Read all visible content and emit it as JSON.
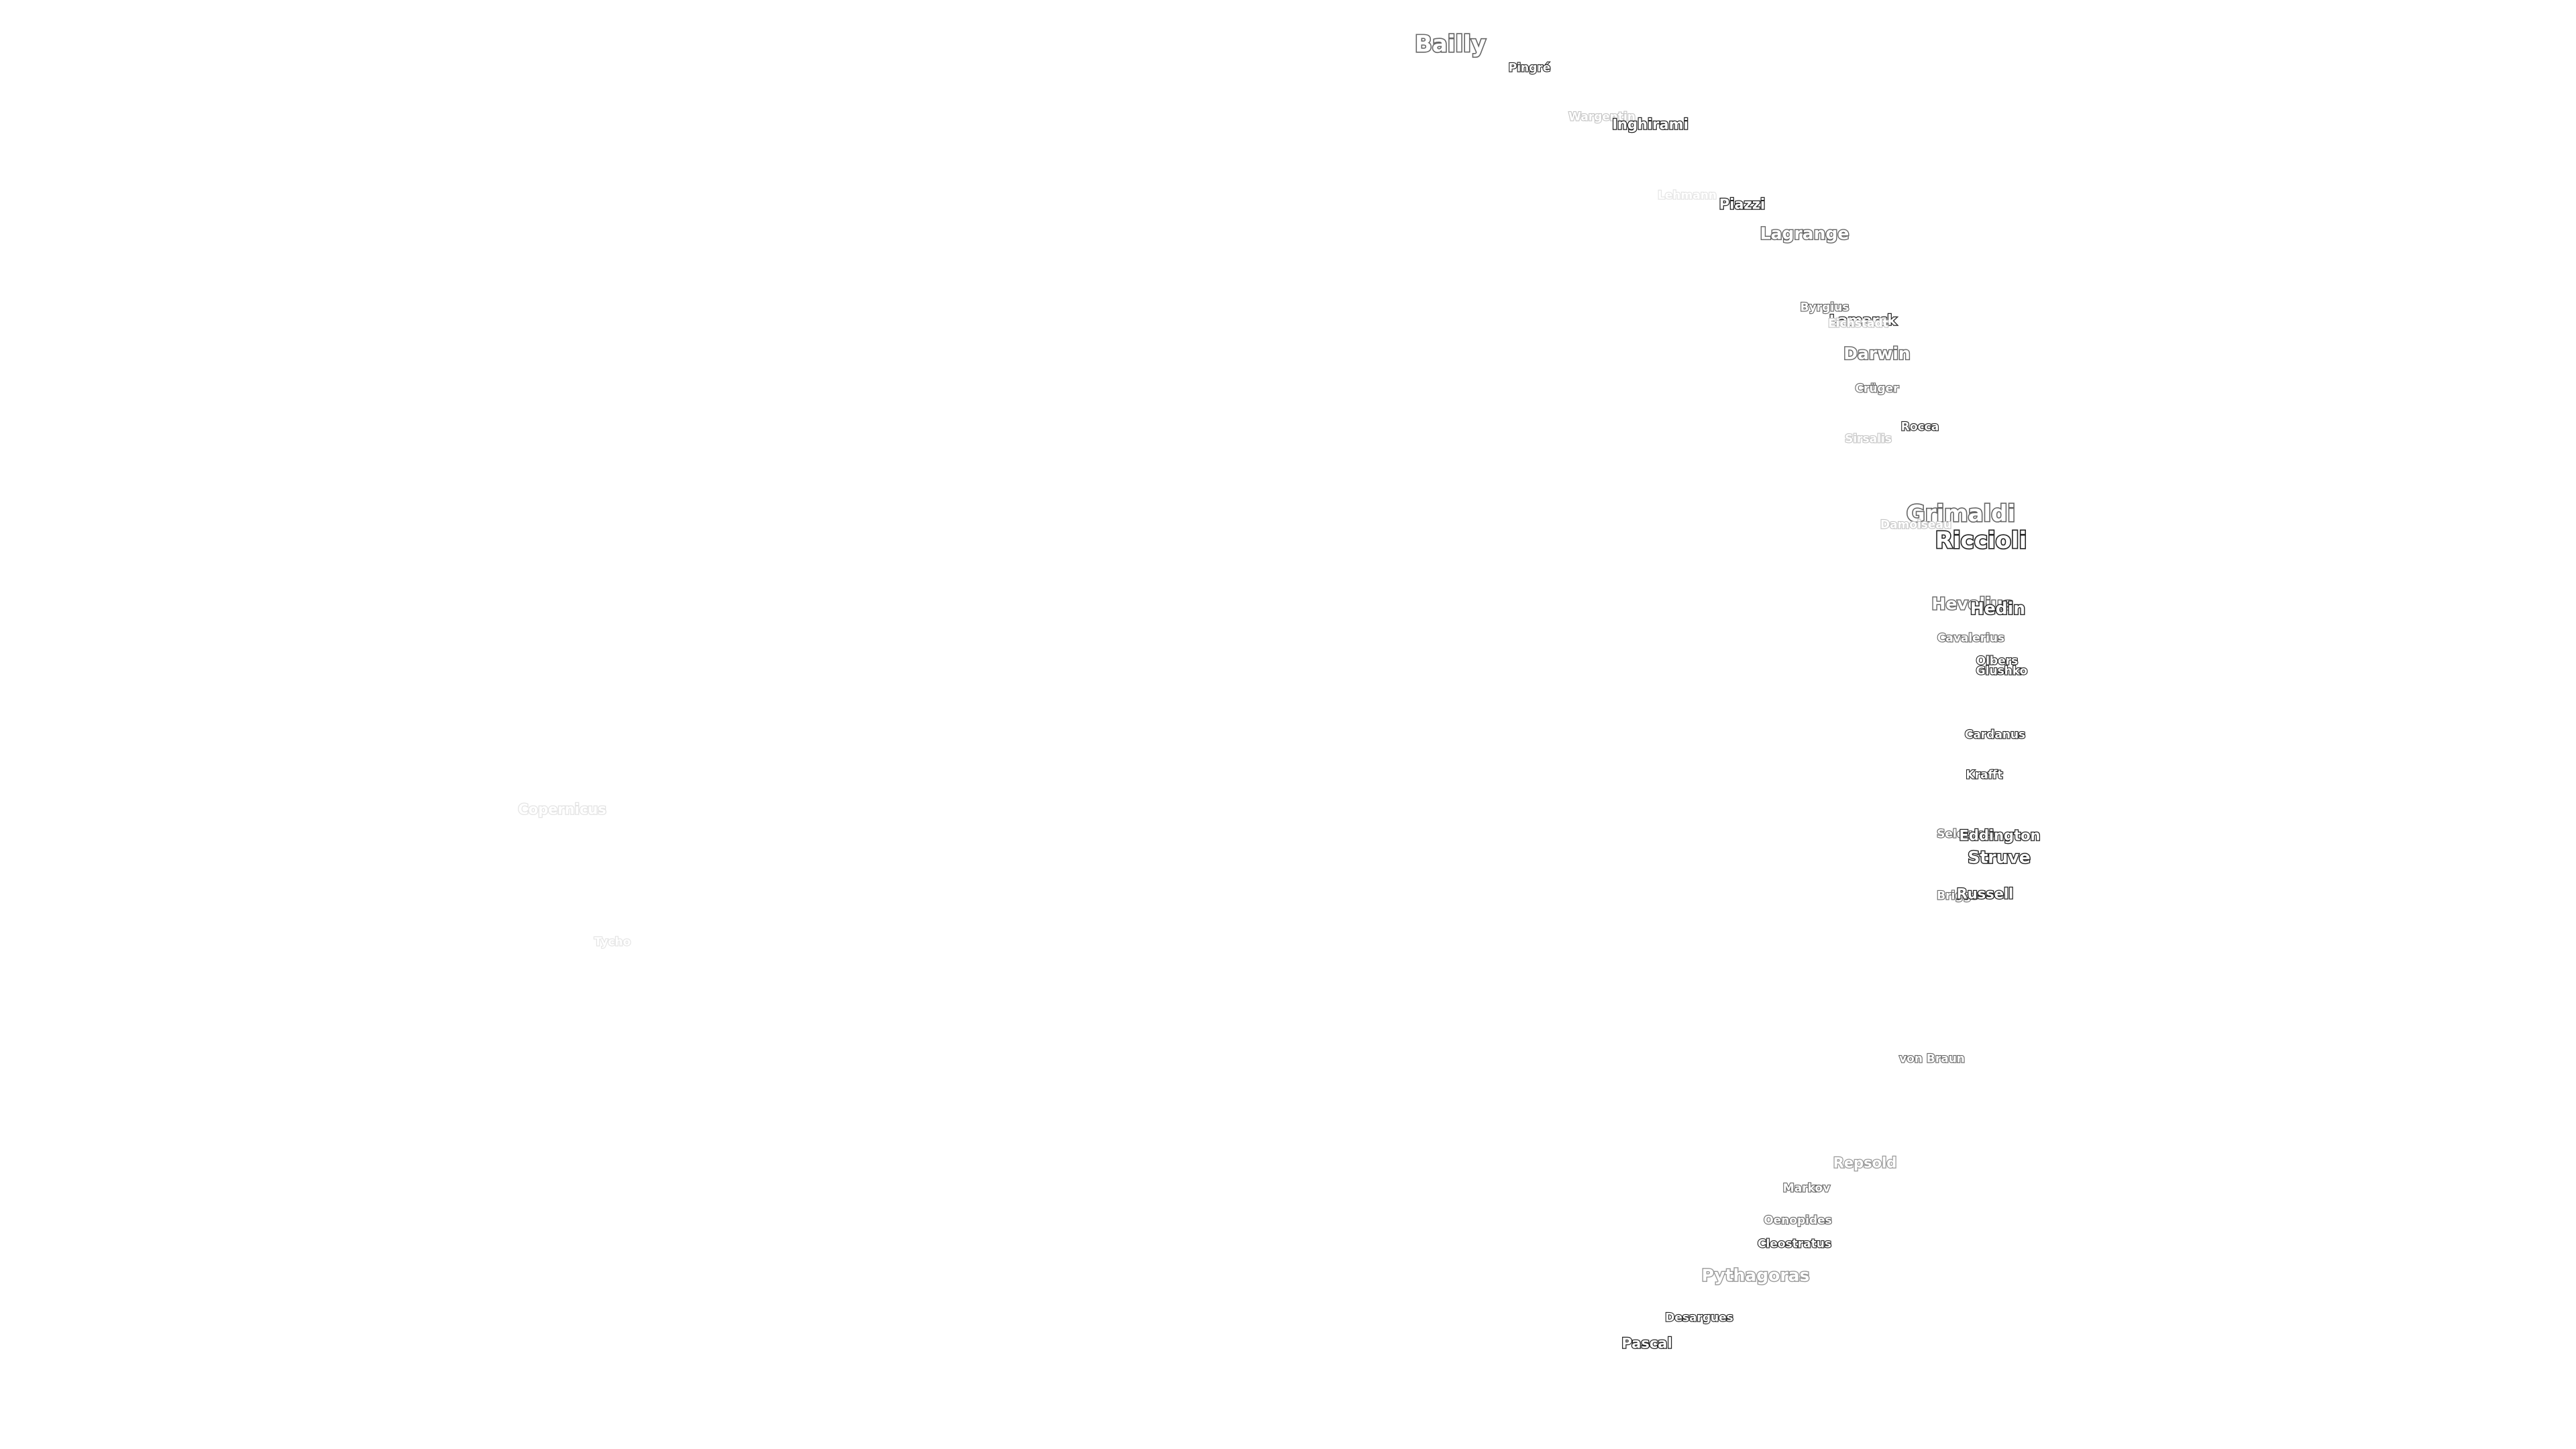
{
  "map": {
    "labels": [
      {
        "id": "bailly",
        "name": "Bailly",
        "tone": "medium",
        "size": "l"
      },
      {
        "id": "pingre",
        "name": "Pingré",
        "tone": "dark",
        "size": "xs"
      },
      {
        "id": "wargentin",
        "name": "Wargentin",
        "tone": "faint",
        "size": "xs"
      },
      {
        "id": "inghirami",
        "name": "Inghirami",
        "tone": "dark",
        "size": "s"
      },
      {
        "id": "lehmann",
        "name": "Lehmann",
        "tone": "faintest",
        "size": "xs"
      },
      {
        "id": "piazzi",
        "name": "Piazzi",
        "tone": "dark",
        "size": "s"
      },
      {
        "id": "lagrange",
        "name": "Lagrange",
        "tone": "medium",
        "size": "m"
      },
      {
        "id": "byrgius",
        "name": "Byrgius",
        "tone": "medium",
        "size": "xs"
      },
      {
        "id": "lamarck",
        "name": "Lamarck",
        "tone": "dark",
        "size": "s"
      },
      {
        "id": "eichstadt",
        "name": "Eichstadt",
        "tone": "faint",
        "size": "xs"
      },
      {
        "id": "darwin",
        "name": "Darwin",
        "tone": "medium",
        "size": "m"
      },
      {
        "id": "cruger",
        "name": "Crüger",
        "tone": "medium",
        "size": "xs"
      },
      {
        "id": "rocca",
        "name": "Rocca",
        "tone": "dark",
        "size": "xs"
      },
      {
        "id": "sirsalis",
        "name": "Sirsalis",
        "tone": "faint",
        "size": "xs"
      },
      {
        "id": "grimaldi",
        "name": "Grimaldi",
        "tone": "medium",
        "size": "l"
      },
      {
        "id": "damoiseau",
        "name": "Damoiseau",
        "tone": "faint",
        "size": "xs"
      },
      {
        "id": "riccioli",
        "name": "Riccioli",
        "tone": "dark",
        "size": "l"
      },
      {
        "id": "hevelius",
        "name": "Hevelius",
        "tone": "medium",
        "size": "m"
      },
      {
        "id": "hedin",
        "name": "Hedin",
        "tone": "dark",
        "size": "m"
      },
      {
        "id": "cavalerius",
        "name": "Cavalerius",
        "tone": "medium",
        "size": "xs"
      },
      {
        "id": "olbers",
        "name": "Olbers",
        "tone": "dark",
        "size": "xs"
      },
      {
        "id": "glushko",
        "name": "Glushko",
        "tone": "dark",
        "size": "xs"
      },
      {
        "id": "cardanus",
        "name": "Cardanus",
        "tone": "dark",
        "size": "xs"
      },
      {
        "id": "krafft",
        "name": "Krafft",
        "tone": "dark",
        "size": "xs"
      },
      {
        "id": "seleucus",
        "name": "Seleucus",
        "tone": "medium",
        "size": "xs"
      },
      {
        "id": "eddington",
        "name": "Eddington",
        "tone": "dark",
        "size": "s"
      },
      {
        "id": "struve",
        "name": "Struve",
        "tone": "dark",
        "size": "m"
      },
      {
        "id": "briggs",
        "name": "Briggs",
        "tone": "medium",
        "size": "xs"
      },
      {
        "id": "russell",
        "name": "Russell",
        "tone": "dark",
        "size": "s"
      },
      {
        "id": "von-braun",
        "name": "von Braun",
        "tone": "medium",
        "size": "xs"
      },
      {
        "id": "repsold",
        "name": "Repsold",
        "tone": "light",
        "size": "s"
      },
      {
        "id": "markov",
        "name": "Markov",
        "tone": "medium",
        "size": "xs"
      },
      {
        "id": "oenopides",
        "name": "Oenopides",
        "tone": "medium",
        "size": "xs"
      },
      {
        "id": "cleostratus",
        "name": "Cleostratus",
        "tone": "dark",
        "size": "xs"
      },
      {
        "id": "pythagoras",
        "name": "Pythagoras",
        "tone": "light",
        "size": "m"
      },
      {
        "id": "desargues",
        "name": "Desargues",
        "tone": "dark",
        "size": "xs"
      },
      {
        "id": "pascal",
        "name": "Pascal",
        "tone": "dark",
        "size": "s"
      },
      {
        "id": "copernicus",
        "name": "Copernicus",
        "tone": "faintest",
        "size": "s"
      },
      {
        "id": "tycho",
        "name": "Tycho",
        "tone": "faintest",
        "size": "xs"
      }
    ]
  },
  "palette": {
    "background": "#ffffff",
    "text_fill": "#ffffff",
    "outline_dark": "#222222",
    "outline_medium": "#666666",
    "outline_light": "#999999",
    "outline_faint": "#c4c4c4",
    "outline_faintest": "#e3e3e3"
  }
}
